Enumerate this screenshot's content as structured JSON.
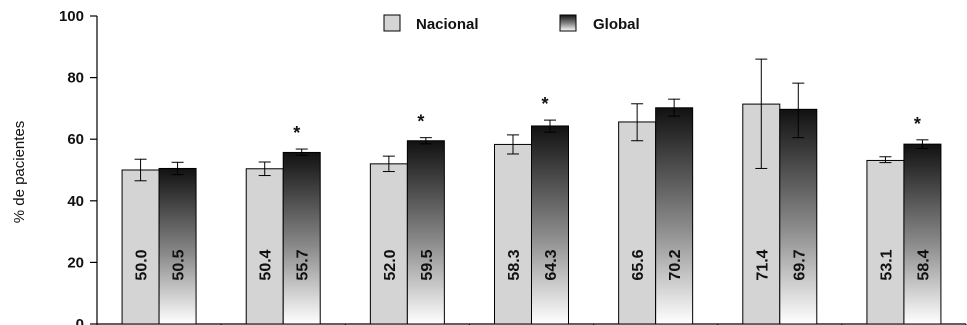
{
  "chart_data": {
    "type": "bar",
    "ylabel": "% de pacientes",
    "ylim": [
      0,
      100
    ],
    "yticks": [
      0,
      20,
      40,
      60,
      80,
      100
    ],
    "legend_placement": "top-center",
    "groups": 7,
    "series": [
      {
        "name": "Nacional",
        "color": "#d4d4d4",
        "values": [
          50.0,
          50.4,
          52.0,
          58.3,
          65.6,
          71.4,
          53.1
        ],
        "labels": [
          "50.0",
          "50.4",
          "52.0",
          "58.3",
          "65.6",
          "71.4",
          "53.1"
        ],
        "err_low": [
          46.5,
          48.2,
          49.5,
          55.2,
          59.5,
          50.5,
          52.4
        ],
        "err_high": [
          53.5,
          52.6,
          54.5,
          61.4,
          71.5,
          86.0,
          54.3
        ]
      },
      {
        "name": "Global",
        "color_top": "#111111",
        "color_bottom": "#ffffff",
        "values": [
          50.5,
          55.7,
          59.5,
          64.3,
          70.2,
          69.7,
          58.4
        ],
        "labels": [
          "50.5",
          "55.7",
          "59.5",
          "64.3",
          "70.2",
          "69.7",
          "58.4"
        ],
        "err_low": [
          48.5,
          54.8,
          58.5,
          62.3,
          67.5,
          60.5,
          57.0
        ],
        "err_high": [
          52.5,
          56.8,
          60.5,
          66.2,
          73.0,
          78.2,
          59.8
        ]
      }
    ],
    "significance": [
      "",
      "*",
      "*",
      "*",
      "",
      "",
      "*"
    ]
  }
}
